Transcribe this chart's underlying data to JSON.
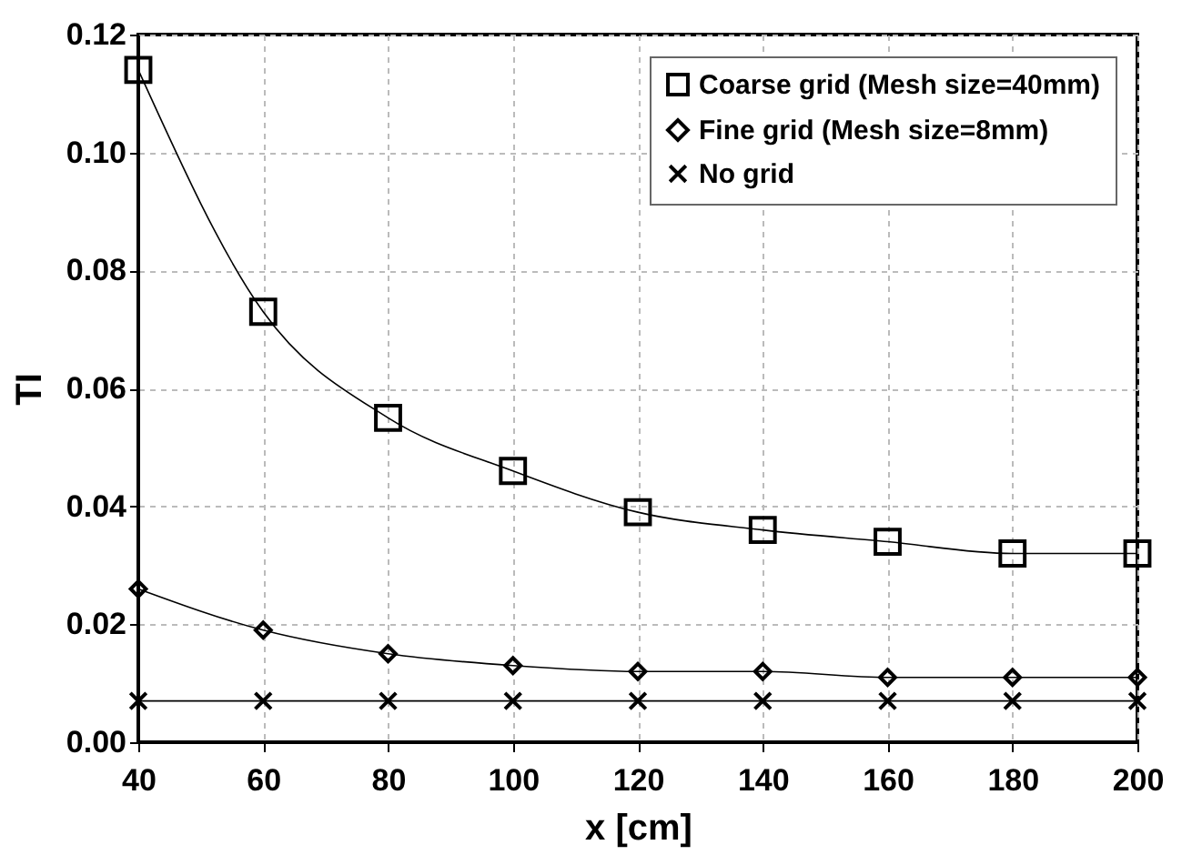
{
  "chart_data": {
    "type": "line",
    "xlabel": "x [cm]",
    "ylabel": "TI",
    "x": [
      40,
      60,
      80,
      100,
      120,
      140,
      160,
      180,
      200
    ],
    "series": [
      {
        "name": "Coarse grid (Mesh size=40mm)",
        "color": "#000000",
        "marker": "square",
        "values": [
          0.114,
          0.073,
          0.055,
          0.046,
          0.039,
          0.036,
          0.034,
          0.032,
          0.032
        ]
      },
      {
        "name": "Fine grid (Mesh size=8mm)",
        "color": "#000000",
        "marker": "diamond",
        "values": [
          0.026,
          0.019,
          0.015,
          0.013,
          0.012,
          0.012,
          0.011,
          0.011,
          0.011
        ]
      },
      {
        "name": "No grid",
        "color": "#000000",
        "marker": "cross",
        "values": [
          0.007,
          0.007,
          0.007,
          0.007,
          0.007,
          0.007,
          0.007,
          0.007,
          0.007
        ]
      }
    ],
    "xlim": [
      40,
      200
    ],
    "xticks": [
      40,
      60,
      80,
      100,
      120,
      140,
      160,
      180,
      200
    ],
    "ylim": [
      0,
      0.12
    ],
    "yticks": [
      {
        "value": 0,
        "label": "0.00"
      },
      {
        "value": 0.02,
        "label": "0.02"
      },
      {
        "value": 0.04,
        "label": "0.04"
      },
      {
        "value": 0.06,
        "label": "0.06"
      },
      {
        "value": 0.08,
        "label": "0.08"
      },
      {
        "value": 0.1,
        "label": "0.10"
      },
      {
        "value": 0.12,
        "label": "0.12"
      }
    ],
    "grid": true,
    "legend": "top right",
    "line_style": "solid"
  }
}
